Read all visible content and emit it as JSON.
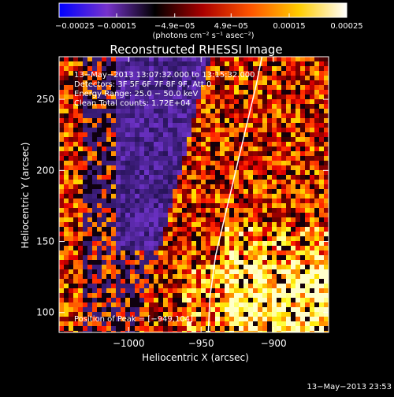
{
  "chart_data": {
    "type": "heatmap",
    "title": "Reconstructed RHESSI Image",
    "xlabel": "Heliocentric X (arcsec)",
    "ylabel": "Heliocentric Y (arcsec)",
    "xlim": [
      -1048,
      -862
    ],
    "ylim": [
      86,
      280
    ],
    "xticks": [
      -1000,
      -950,
      -900
    ],
    "xtick_labels": [
      "−1000",
      "−950",
      "−900"
    ],
    "yticks": [
      100,
      150,
      200,
      250
    ],
    "ytick_labels": [
      "100",
      "150",
      "200",
      "250"
    ],
    "colorbar": {
      "range": [
        -0.00025,
        0.00025
      ],
      "ticks": [
        -0.00025,
        -0.00015,
        -4.9e-05,
        4.9e-05,
        0.00015,
        0.00025
      ],
      "tick_labels": [
        "−0.00025",
        "−0.00015",
        "−4.9e−05",
        "4.9e−05",
        "0.00015",
        "0.00025"
      ],
      "unit_label": "(photons cm⁻² s⁻¹ asec⁻²)",
      "stops": [
        "#0000ff",
        "#7733cc",
        "#000000",
        "#aa0000",
        "#ff5500",
        "#ffcc00",
        "#ffffff"
      ]
    },
    "info_lines": [
      "13−May−2013 13:07:32.000 to 13:15:32.000",
      "Detectors: 3F 5F 6F 7F 8F 9F, Att 0",
      "Energy Range: 25.0 − 50.0 keV",
      "Clean     Total counts: 1.72E+04"
    ],
    "peak_text": "Position of Peak = [−949,104]",
    "limb": [
      [
        -945,
        86
      ],
      [
        -944,
        110
      ],
      [
        -940,
        140
      ],
      [
        -933,
        170
      ],
      [
        -926,
        200
      ],
      [
        -919,
        230
      ],
      [
        -912,
        260
      ],
      [
        -908,
        280
      ]
    ],
    "grid": false,
    "legend": "none"
  },
  "footer": {
    "timestamp": "13−May−2013 23:53"
  }
}
